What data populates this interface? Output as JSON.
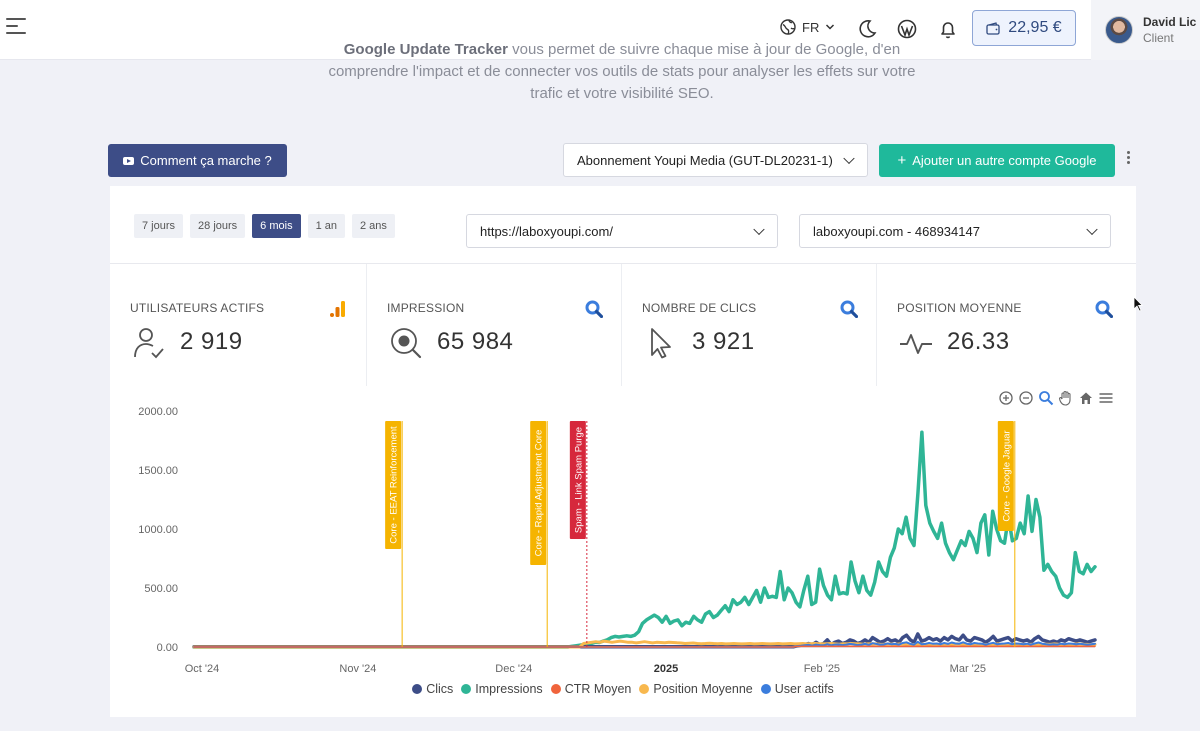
{
  "header": {
    "language": "FR",
    "balance": "22,95 €",
    "user": {
      "name": "David Lic",
      "role": "Client"
    },
    "icons": [
      "menu-icon",
      "globe-icon",
      "moon-icon",
      "wordpress-icon",
      "bell-icon",
      "wallet-icon"
    ]
  },
  "intro": {
    "line1_bold": "Google Update Tracker",
    "line1_rest": " vous permet de suivre chaque mise à jour de Google, d'en",
    "line2": "comprendre l'impact et de connecter vos outils de stats pour analyser les effets sur votre",
    "line3": "trafic et votre visibilité SEO."
  },
  "toolbar": {
    "how_label": "Comment ça marche ?",
    "subscription": "Abonnement Youpi Media (GUT-DL20231-1)",
    "add_account_label": "Ajouter un autre compte Google"
  },
  "filters": {
    "ranges": [
      "7 jours",
      "28 jours",
      "6 mois",
      "1 an",
      "2 ans"
    ],
    "active_range": "6 mois",
    "site": "https://laboxyoupi.com/",
    "property": "laboxyoupi.com - 468934147"
  },
  "kpis": [
    {
      "label": "UTILISATEURS ACTIFS",
      "value": "2 919",
      "icon": "user-check-icon",
      "corner": "analytics-icon"
    },
    {
      "label": "IMPRESSION",
      "value": "65 984",
      "icon": "search-eye-icon",
      "corner": "search-console-icon"
    },
    {
      "label": "NOMBRE DE CLICS",
      "value": "3 921",
      "icon": "cursor-icon",
      "corner": "search-console-icon"
    },
    {
      "label": "POSITION MOYENNE",
      "value": "26.33",
      "icon": "pulse-icon",
      "corner": "search-console-icon"
    }
  ],
  "colors": {
    "clics": "#3d4d87",
    "impressions": "#2fb596",
    "ctr": "#f0643c",
    "position": "#f8b84e",
    "users": "#3b7ddd",
    "core_update": "#f5b400",
    "spam_update": "#d6283c"
  },
  "chart_data": {
    "type": "line",
    "ylim": [
      0,
      2000
    ],
    "yticks": [
      "2000.00",
      "1500.00",
      "1000.00",
      "500.00",
      "0.00"
    ],
    "xticks": [
      {
        "label": "Oct '24",
        "t": 0.0
      },
      {
        "label": "Nov '24",
        "t": 0.173
      },
      {
        "label": "Dec '24",
        "t": 0.346
      },
      {
        "label": "2025",
        "t": 0.515,
        "bold": true
      },
      {
        "label": "Feb '25",
        "t": 0.688
      },
      {
        "label": "Mar '25",
        "t": 0.85
      }
    ],
    "annotations": [
      {
        "label": "Core - EEAT Reinforcement",
        "t": 0.231,
        "color": "#f5b400"
      },
      {
        "label": "Core - Rapid Adjustment Core",
        "t": 0.392,
        "color": "#f5b400"
      },
      {
        "label": "Spam - Link Spam Purge",
        "t": 0.436,
        "color": "#d6283c"
      },
      {
        "label": "Core - Google Jaguar",
        "t": 0.911,
        "color": "#f5b400"
      }
    ],
    "series": [
      {
        "name": "Impressions",
        "values": [
          0,
          0,
          0,
          0,
          0,
          0,
          0,
          0,
          0,
          0,
          0,
          0,
          0,
          0,
          0,
          0,
          0,
          0,
          0,
          0,
          0,
          0,
          0,
          0,
          0,
          0,
          0,
          0,
          0,
          0,
          0,
          0,
          0,
          0,
          0,
          0,
          0,
          0,
          0,
          0,
          0,
          0,
          0,
          0,
          0,
          0,
          0,
          0,
          0,
          0,
          0,
          0,
          0,
          0,
          0,
          0,
          0,
          0,
          0,
          0,
          0,
          0,
          0,
          0,
          0,
          0,
          0,
          0,
          0,
          0,
          0,
          0,
          0,
          0,
          0,
          0,
          0,
          0,
          0,
          0,
          0,
          0,
          0,
          0,
          0,
          0,
          0,
          0,
          0,
          0,
          0,
          0,
          0,
          0,
          0,
          0,
          5,
          10,
          15,
          20,
          28,
          30,
          40,
          38,
          50,
          60,
          80,
          90,
          85,
          90,
          95,
          90,
          100,
          130,
          200,
          230,
          250,
          270,
          250,
          210,
          260,
          200,
          220,
          230,
          180,
          210,
          200,
          260,
          230,
          210,
          280,
          300,
          250,
          270,
          310,
          350,
          300,
          400,
          360,
          380,
          420,
          360,
          420,
          480,
          380,
          500,
          420,
          430,
          420,
          640,
          400,
          500,
          460,
          380,
          340,
          480,
          600,
          360,
          380,
          660,
          520,
          440,
          400,
          600,
          450,
          460,
          450,
          720,
          560,
          460,
          600,
          480,
          440,
          550,
          720,
          640,
          600,
          760,
          840,
          1000,
          960,
          1100,
          920,
          860,
          1300,
          1820,
          1200,
          1050,
          980,
          920,
          1050,
          880,
          800,
          740,
          820,
          900,
          860,
          980,
          920,
          800,
          1050,
          1120,
          780,
          1150,
          1000,
          900,
          880,
          1100,
          900,
          920,
          1050,
          960,
          1280,
          980,
          1250,
          1100,
          650,
          700,
          640,
          600,
          500,
          440,
          420,
          460,
          800,
          640,
          620,
          700,
          640,
          680
        ]
      },
      {
        "name": "Clics",
        "values": [
          2,
          2,
          2,
          2,
          2,
          2,
          2,
          2,
          2,
          2,
          2,
          2,
          2,
          2,
          2,
          2,
          2,
          2,
          2,
          2,
          2,
          2,
          2,
          2,
          2,
          2,
          2,
          2,
          2,
          2,
          2,
          2,
          2,
          2,
          2,
          2,
          2,
          2,
          2,
          2,
          2,
          2,
          2,
          2,
          2,
          2,
          2,
          2,
          2,
          2,
          2,
          2,
          2,
          2,
          2,
          2,
          2,
          2,
          2,
          2,
          2,
          2,
          2,
          2,
          2,
          2,
          2,
          2,
          2,
          2,
          2,
          2,
          2,
          2,
          2,
          2,
          2,
          2,
          2,
          2,
          2,
          2,
          2,
          2,
          2,
          2,
          2,
          2,
          2,
          2,
          2,
          2,
          2,
          2,
          2,
          2,
          2,
          2,
          2,
          2,
          2,
          2,
          2,
          2,
          2,
          2,
          2,
          2,
          2,
          2,
          2,
          2,
          2,
          2,
          2,
          2,
          2,
          2,
          2,
          2,
          2,
          2,
          2,
          2,
          2,
          2,
          2,
          2,
          2,
          2,
          2,
          2,
          2,
          2,
          2,
          2,
          2,
          2,
          2,
          2,
          2,
          2,
          2,
          2,
          2,
          2,
          2,
          2,
          2,
          2,
          2,
          2,
          2,
          2,
          2,
          2,
          2,
          2,
          2,
          2,
          10,
          14,
          20,
          30,
          20,
          40,
          20,
          30,
          60,
          20,
          40,
          50,
          30,
          40,
          60,
          50,
          30,
          40,
          60,
          40,
          80,
          60,
          40,
          50,
          70,
          50,
          60,
          40,
          80,
          100,
          60,
          40,
          110,
          50,
          60,
          80,
          60,
          70,
          50,
          80,
          60,
          90,
          70,
          60,
          100,
          60,
          50,
          80,
          70,
          60,
          40,
          60,
          90,
          50,
          60,
          70,
          80,
          50,
          70,
          60,
          50,
          60,
          40,
          70,
          90,
          60,
          50,
          40,
          50,
          40,
          60,
          50,
          70,
          60,
          50,
          60,
          50,
          40,
          50,
          60
        ]
      },
      {
        "name": "Position Moyenne",
        "values": [
          0,
          0,
          0,
          0,
          0,
          0,
          0,
          0,
          0,
          0,
          0,
          0,
          0,
          0,
          0,
          0,
          0,
          0,
          0,
          0,
          0,
          0,
          0,
          0,
          0,
          0,
          0,
          0,
          0,
          0,
          0,
          0,
          0,
          0,
          0,
          0,
          0,
          0,
          0,
          0,
          0,
          0,
          0,
          0,
          0,
          0,
          0,
          0,
          0,
          0,
          0,
          0,
          0,
          0,
          0,
          0,
          0,
          0,
          0,
          0,
          0,
          0,
          0,
          0,
          0,
          0,
          0,
          0,
          0,
          0,
          0,
          0,
          0,
          0,
          0,
          0,
          0,
          0,
          0,
          0,
          0,
          0,
          0,
          0,
          0,
          0,
          0,
          0,
          0,
          0,
          0,
          0,
          0,
          0,
          0,
          0,
          30,
          35,
          40,
          45,
          40,
          50,
          45,
          40,
          45,
          50,
          45,
          40,
          40,
          35,
          40,
          45,
          40,
          35,
          40,
          38,
          36,
          40,
          38,
          36,
          34,
          30,
          32,
          34,
          30,
          28,
          30,
          32,
          30,
          28,
          30,
          26,
          28,
          30,
          28,
          26,
          28,
          30,
          26,
          28,
          30,
          28,
          26,
          28,
          30,
          26,
          28,
          30,
          26,
          28,
          30,
          26,
          28,
          30,
          28,
          26,
          28,
          30,
          26,
          24,
          28,
          26,
          30,
          28,
          26,
          24,
          26,
          28,
          26,
          24,
          22,
          26,
          24,
          22,
          26,
          24,
          22,
          20,
          22,
          24,
          22,
          20,
          24,
          22,
          20,
          22,
          24,
          22,
          26,
          24,
          22,
          20,
          22,
          24,
          22,
          20,
          22,
          24,
          26,
          22,
          24,
          20,
          22,
          24,
          22,
          20,
          22,
          24,
          22,
          20,
          24,
          22,
          26,
          24,
          22,
          20,
          22,
          24,
          26,
          24,
          22,
          20,
          22
        ]
      },
      {
        "name": "User actifs",
        "values": [
          0,
          0,
          0,
          0,
          0,
          0,
          0,
          0,
          0,
          0,
          0,
          0,
          0,
          0,
          0,
          0,
          0,
          0,
          0,
          0,
          0,
          0,
          0,
          0,
          0,
          0,
          0,
          0,
          0,
          0,
          0,
          0,
          0,
          0,
          0,
          0,
          0,
          0,
          0,
          0,
          0,
          0,
          0,
          0,
          0,
          0,
          0,
          0,
          0,
          0,
          0,
          0,
          0,
          0,
          0,
          0,
          0,
          0,
          0,
          0,
          0,
          0,
          0,
          0,
          0,
          0,
          0,
          0,
          0,
          0,
          0,
          0,
          0,
          0,
          0,
          0,
          0,
          0,
          0,
          0,
          0,
          0,
          0,
          0,
          0,
          0,
          0,
          0,
          0,
          0,
          0,
          0,
          0,
          0,
          0,
          0,
          0,
          0,
          0,
          0,
          0,
          0,
          0,
          0,
          0,
          0,
          0,
          0,
          0,
          0,
          0,
          0,
          0,
          0,
          0,
          0,
          0,
          0,
          0,
          0,
          0,
          0,
          0,
          0,
          0,
          0,
          0,
          0,
          0,
          0,
          0,
          0,
          0,
          0,
          0,
          0,
          0,
          0,
          0,
          0,
          0,
          0,
          0,
          0,
          0,
          0,
          0,
          0,
          0,
          0,
          0,
          0,
          0,
          0,
          0,
          0,
          0,
          0,
          0,
          0,
          8,
          10,
          14,
          18,
          12,
          20,
          16,
          14,
          24,
          14,
          20,
          22,
          16,
          20,
          26,
          22,
          16,
          20,
          26,
          18,
          32,
          26,
          20,
          22,
          30,
          24,
          26,
          20,
          34,
          40,
          26,
          20,
          44,
          24,
          26,
          34,
          28,
          30,
          24,
          34,
          26,
          38,
          30,
          28,
          40,
          28,
          24,
          34,
          30,
          28,
          20,
          28,
          36,
          24,
          28,
          30,
          34,
          24,
          30,
          28,
          24,
          28,
          20,
          30,
          38,
          28,
          24,
          20,
          24,
          20,
          28,
          24,
          30,
          28,
          24,
          28,
          24,
          20,
          24,
          28
        ]
      },
      {
        "name": "CTR Moyen",
        "values": [
          0,
          0,
          0,
          0,
          0,
          0,
          0,
          0,
          0,
          0,
          0,
          0,
          0,
          0,
          0,
          0,
          0,
          0,
          0,
          0,
          0,
          0,
          0,
          0,
          0,
          0,
          0,
          0,
          0,
          0,
          0,
          0,
          0,
          0,
          0,
          0,
          0,
          0,
          0,
          0,
          0,
          0,
          0,
          0,
          0,
          0,
          0,
          0,
          0,
          0,
          0,
          0,
          0,
          0,
          0,
          0,
          0,
          0,
          0,
          0,
          0,
          0,
          0,
          0,
          0,
          0,
          0,
          0,
          0,
          0,
          0,
          0,
          0,
          0,
          0,
          0,
          0,
          0,
          0,
          0,
          0,
          0,
          0,
          0,
          0,
          0,
          0,
          0,
          0,
          0,
          0,
          0,
          0,
          0,
          0,
          0,
          0,
          0,
          0,
          0,
          0,
          0,
          0,
          0,
          0,
          0,
          0,
          0,
          0,
          0,
          0,
          0,
          0,
          0,
          0,
          0,
          0,
          0,
          0,
          0,
          0,
          0,
          0,
          0,
          0,
          0,
          0,
          0,
          0,
          0,
          0,
          0,
          0,
          0,
          0,
          0,
          0,
          0,
          0,
          0,
          0,
          0,
          0,
          0,
          0,
          0,
          0,
          0,
          0,
          0,
          0,
          0,
          0,
          0,
          0,
          0,
          0,
          0,
          0,
          0,
          5,
          5,
          6,
          5,
          5,
          6,
          5,
          5,
          6,
          5,
          5,
          6,
          5,
          5,
          6,
          5,
          5,
          6,
          5,
          5,
          6,
          5,
          5,
          6,
          5,
          5,
          6,
          5,
          5,
          6,
          5,
          5,
          6,
          5,
          5,
          6,
          5,
          5,
          6,
          5,
          5,
          6,
          5,
          5,
          6,
          5,
          5,
          6,
          5,
          5,
          6,
          5,
          5,
          6,
          5,
          5,
          6,
          5,
          5,
          6,
          5,
          5,
          6,
          5,
          5,
          6,
          5,
          5,
          6,
          5,
          5,
          6,
          5,
          5,
          6,
          5,
          5,
          6,
          5,
          5
        ]
      }
    ],
    "legend": [
      "Clics",
      "Impressions",
      "CTR Moyen",
      "Position Moyenne",
      "User actifs"
    ],
    "legend_placement": "bottom-center",
    "grid": false
  }
}
